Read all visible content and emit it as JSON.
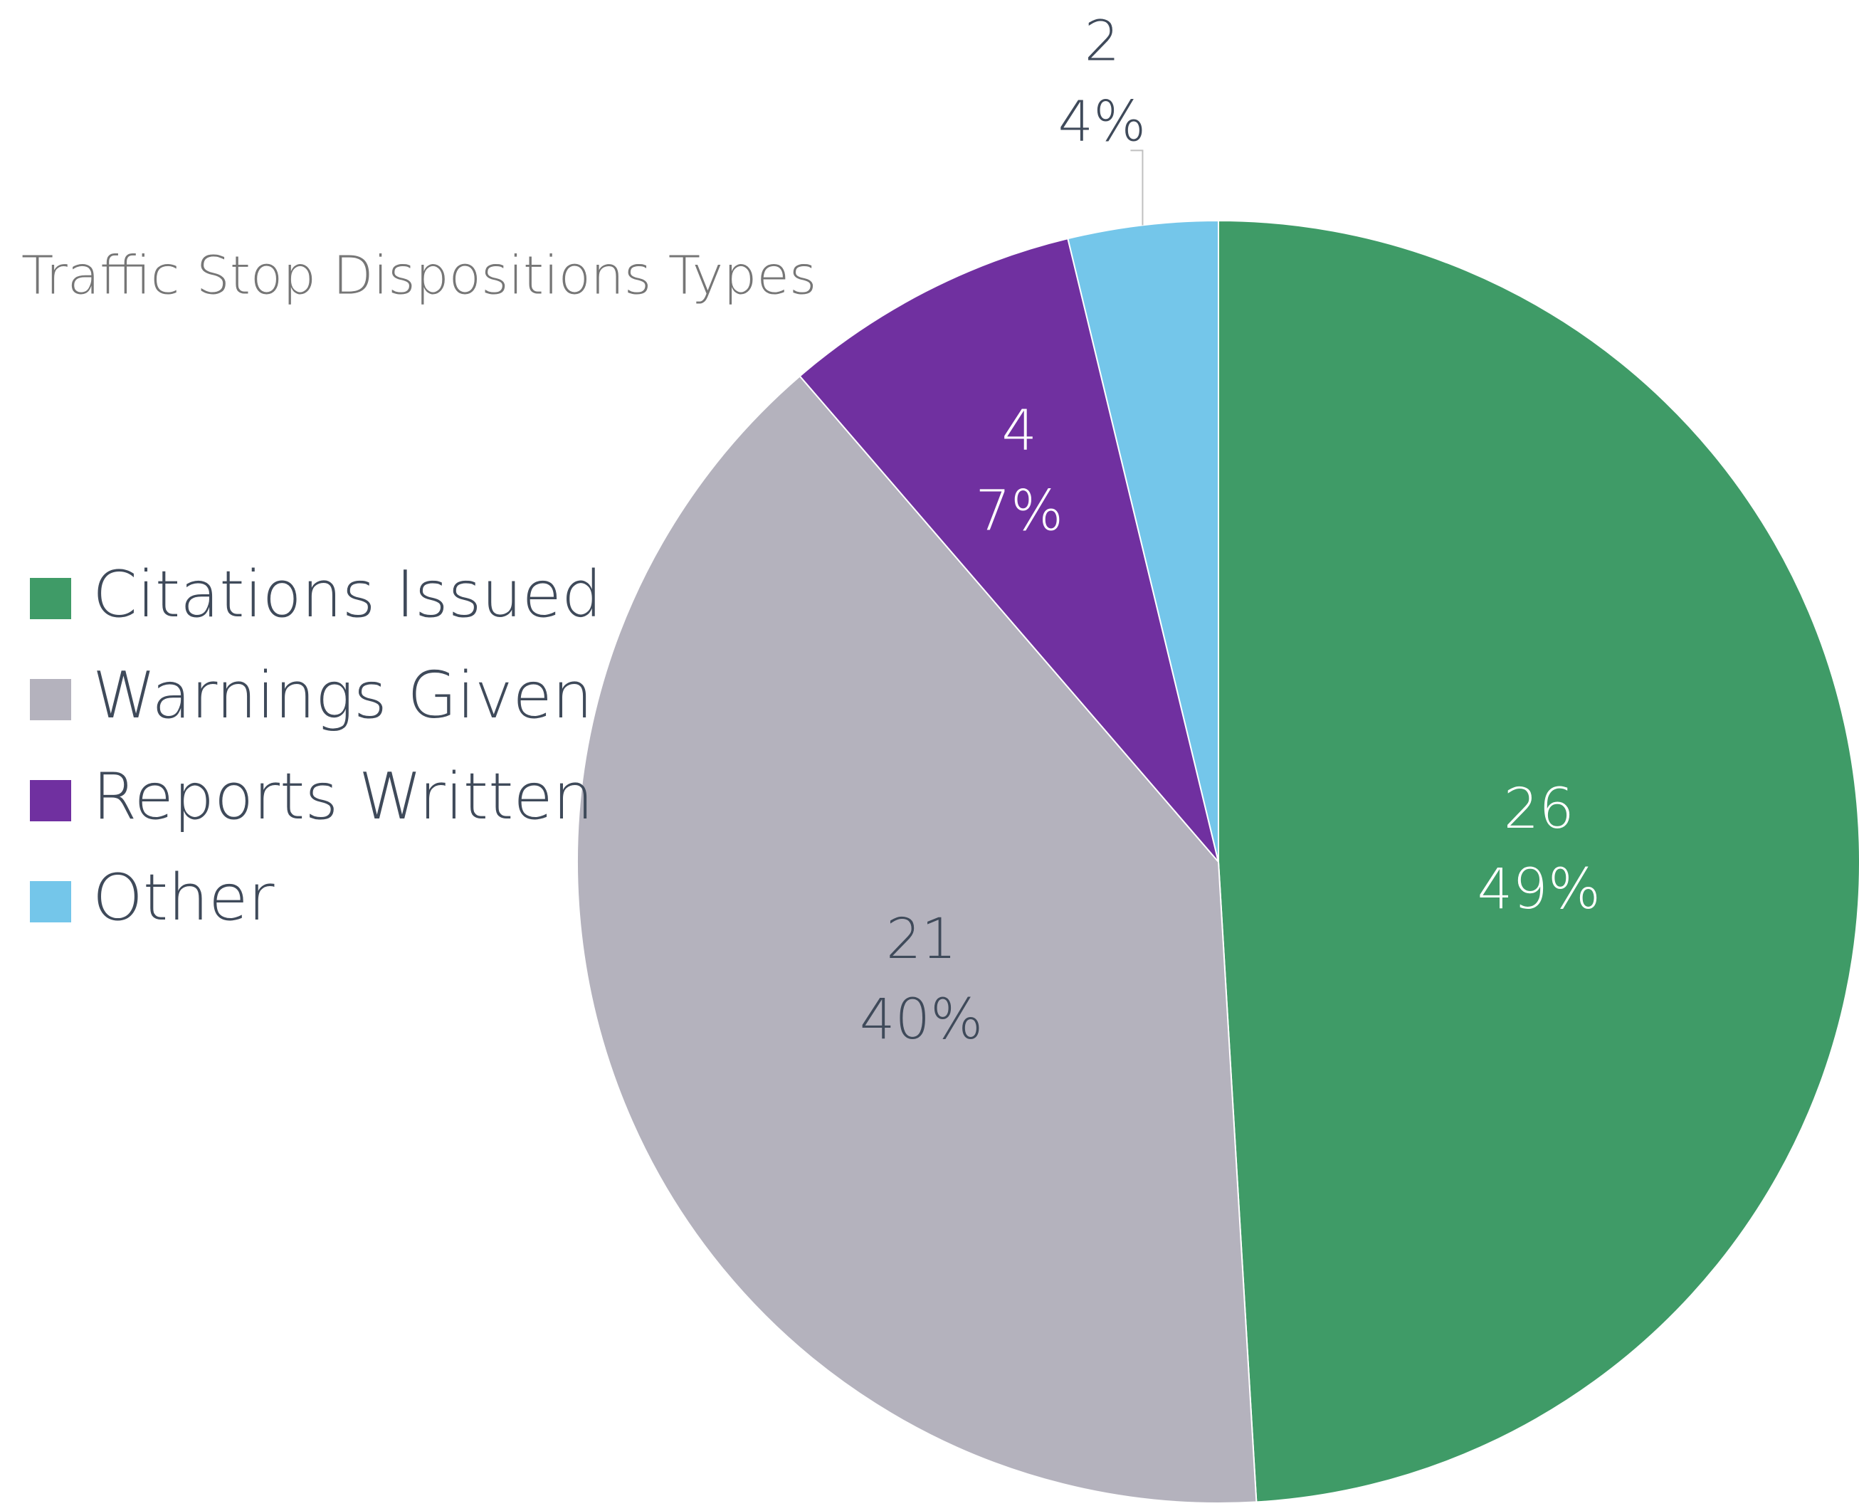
{
  "chart_data": {
    "type": "pie",
    "title": "Traffic Stop Dispositions Types",
    "categories": [
      "Citations Issued",
      "Warnings Given",
      "Reports Written",
      "Other"
    ],
    "values": [
      26,
      21,
      4,
      2
    ],
    "percents": [
      49,
      40,
      7,
      4
    ],
    "percent_labels": [
      "49%",
      "40%",
      "7%",
      "4%"
    ],
    "colors": [
      "#3f9b67",
      "#b4b2bd",
      "#7030a0",
      "#74c6ea"
    ],
    "legend": "left"
  }
}
